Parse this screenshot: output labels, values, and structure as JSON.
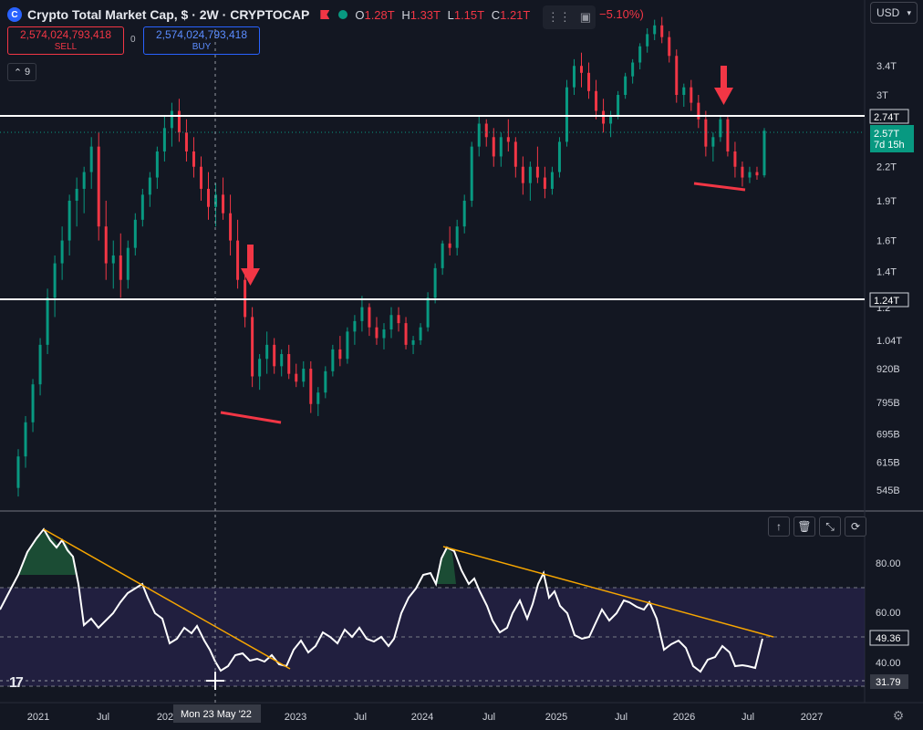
{
  "header": {
    "logo_icon": "crypto-cap-logo-icon",
    "symbol_title": "Crypto Total Market Cap, $ · 2W · CRYPTOCAP",
    "open_label": "O",
    "open": "1.28T",
    "high_label": "H",
    "high": "1.33T",
    "low_label": "L",
    "low": "1.15T",
    "close_label": "C",
    "close": "1.21T",
    "change": "−5.10%)",
    "flag_color": "#f23645",
    "status_color": "#089981"
  },
  "trade": {
    "sell_price": "2,574,024,793,418",
    "sell_label": "SELL",
    "spread": "0",
    "buy_price": "2,574,024,793,418",
    "buy_label": "BUY"
  },
  "indicators_toggle": {
    "count": "9"
  },
  "currency_select": {
    "value": "USD"
  },
  "price_axis": {
    "ticks": [
      "3.4T",
      "3T",
      "2.2T",
      "1.9T",
      "1.6T",
      "1.4T",
      "1.04T",
      "920B",
      "795B",
      "695B",
      "615B",
      "545B"
    ],
    "tick_values": [
      3400000000000.0,
      3000000000000.0,
      2200000000000.0,
      1900000000000.0,
      1600000000000.0,
      1400000000000.0,
      1040000000000.0,
      920000000000.0,
      795000000000.0,
      695000000000.0,
      615000000000.0,
      545000000000.0
    ],
    "label_partial": "1.2",
    "level_upper": "2.74T",
    "level_lower": "1.24T",
    "last_price": "2.57T",
    "countdown": "7d 15h",
    "last_price_color": "#089981"
  },
  "osc_axis": {
    "ticks": [
      "80.00",
      "60.00",
      "40.00"
    ],
    "current": "49.36",
    "crosshair_value": "31.79"
  },
  "time_axis": {
    "labels": [
      "2021",
      "Jul",
      "202",
      "2023",
      "Jul",
      "2024",
      "Jul",
      "2025",
      "Jul",
      "2026",
      "Jul",
      "2027"
    ],
    "crosshair_date": "Mon 23 May '22"
  },
  "colors": {
    "up": "#089981",
    "down": "#f23645",
    "trendline": "#f7a600",
    "annotation": "#f23645",
    "background": "#131722"
  },
  "chart_data": {
    "type": "candlestick",
    "scale": "log",
    "levels": [
      2740000000000.0,
      1240000000000.0
    ],
    "rsi_levels": [
      70,
      30
    ],
    "series": [
      {
        "values": [
          [
            550000000000.0,
            650000000000.0,
            530000000000.0,
            630000000000.0
          ],
          [
            630000000000.0,
            750000000000.0,
            600000000000.0,
            730000000000.0
          ],
          [
            730000000000.0,
            880000000000.0,
            700000000000.0,
            860000000000.0
          ],
          [
            860000000000.0,
            1050000000000.0,
            820000000000.0,
            1020000000000.0
          ],
          [
            1020000000000.0,
            1300000000000.0,
            980000000000.0,
            1250000000000.0
          ],
          [
            1250000000000.0,
            1500000000000.0,
            1150000000000.0,
            1450000000000.0
          ],
          [
            1450000000000.0,
            1700000000000.0,
            1350000000000.0,
            1600000000000.0
          ],
          [
            1600000000000.0,
            1950000000000.0,
            1500000000000.0,
            1900000000000.0
          ],
          [
            1900000000000.0,
            2100000000000.0,
            1700000000000.0,
            2000000000000.0
          ],
          [
            2000000000000.0,
            2200000000000.0,
            1800000000000.0,
            2150000000000.0
          ],
          [
            2150000000000.0,
            2500000000000.0,
            2000000000000.0,
            2400000000000.0
          ],
          [
            2400000000000.0,
            2550000000000.0,
            1600000000000.0,
            1700000000000.0
          ],
          [
            1700000000000.0,
            1900000000000.0,
            1350000000000.0,
            1450000000000.0
          ],
          [
            1450000000000.0,
            1600000000000.0,
            1300000000000.0,
            1500000000000.0
          ],
          [
            1500000000000.0,
            1650000000000.0,
            1250000000000.0,
            1350000000000.0
          ],
          [
            1350000000000.0,
            1600000000000.0,
            1300000000000.0,
            1550000000000.0
          ],
          [
            1550000000000.0,
            1800000000000.0,
            1500000000000.0,
            1750000000000.0
          ],
          [
            1750000000000.0,
            2000000000000.0,
            1700000000000.0,
            1950000000000.0
          ],
          [
            1950000000000.0,
            2150000000000.0,
            1850000000000.0,
            2100000000000.0
          ],
          [
            2100000000000.0,
            2400000000000.0,
            2000000000000.0,
            2350000000000.0
          ],
          [
            2350000000000.0,
            2750000000000.0,
            2250000000000.0,
            2600000000000.0
          ],
          [
            2600000000000.0,
            2900000000000.0,
            2400000000000.0,
            2800000000000.0
          ],
          [
            2800000000000.0,
            2950000000000.0,
            2450000000000.0,
            2550000000000.0
          ],
          [
            2550000000000.0,
            2700000000000.0,
            2250000000000.0,
            2350000000000.0
          ],
          [
            2350000000000.0,
            2500000000000.0,
            2100000000000.0,
            2200000000000.0
          ],
          [
            2200000000000.0,
            2300000000000.0,
            1900000000000.0,
            2000000000000.0
          ],
          [
            2000000000000.0,
            2150000000000.0,
            1750000000000.0,
            1850000000000.0
          ],
          [
            1850000000000.0,
            2050000000000.0,
            1700000000000.0,
            1950000000000.0
          ],
          [
            1950000000000.0,
            2100000000000.0,
            1750000000000.0,
            1800000000000.0
          ],
          [
            1800000000000.0,
            1950000000000.0,
            1500000000000.0,
            1600000000000.0
          ],
          [
            1600000000000.0,
            1750000000000.0,
            1300000000000.0,
            1350000000000.0
          ],
          [
            1350000000000.0,
            1400000000000.0,
            1100000000000.0,
            1150000000000.0
          ],
          [
            1150000000000.0,
            1200000000000.0,
            850000000000.0,
            890000000000.0
          ],
          [
            890000000000.0,
            980000000000.0,
            840000000000.0,
            960000000000.0
          ],
          [
            960000000000.0,
            1080000000000.0,
            900000000000.0,
            1020000000000.0
          ],
          [
            1020000000000.0,
            1050000000000.0,
            900000000000.0,
            930000000000.0
          ],
          [
            930000000000.0,
            1000000000000.0,
            890000000000.0,
            980000000000.0
          ],
          [
            980000000000.0,
            1020000000000.0,
            880000000000.0,
            900000000000.0
          ],
          [
            900000000000.0,
            940000000000.0,
            850000000000.0,
            870000000000.0
          ],
          [
            870000000000.0,
            950000000000.0,
            850000000000.0,
            920000000000.0
          ],
          [
            920000000000.0,
            950000000000.0,
            760000000000.0,
            790000000000.0
          ],
          [
            790000000000.0,
            850000000000.0,
            750000000000.0,
            830000000000.0
          ],
          [
            830000000000.0,
            930000000000.0,
            810000000000.0,
            910000000000.0
          ],
          [
            910000000000.0,
            1020000000000.0,
            890000000000.0,
            1000000000000.0
          ],
          [
            1000000000000.0,
            1060000000000.0,
            930000000000.0,
            960000000000.0
          ],
          [
            960000000000.0,
            1100000000000.0,
            940000000000.0,
            1080000000000.0
          ],
          [
            1080000000000.0,
            1160000000000.0,
            1020000000000.0,
            1130000000000.0
          ],
          [
            1130000000000.0,
            1260000000000.0,
            1080000000000.0,
            1200000000000.0
          ],
          [
            1200000000000.0,
            1220000000000.0,
            1060000000000.0,
            1100000000000.0
          ],
          [
            1100000000000.0,
            1150000000000.0,
            1020000000000.0,
            1050000000000.0
          ],
          [
            1050000000000.0,
            1120000000000.0,
            1000000000000.0,
            1090000000000.0
          ],
          [
            1090000000000.0,
            1200000000000.0,
            1050000000000.0,
            1160000000000.0
          ],
          [
            1160000000000.0,
            1200000000000.0,
            1080000000000.0,
            1120000000000.0
          ],
          [
            1120000000000.0,
            1150000000000.0,
            1000000000000.0,
            1020000000000.0
          ],
          [
            1020000000000.0,
            1060000000000.0,
            980000000000.0,
            1040000000000.0
          ],
          [
            1040000000000.0,
            1120000000000.0,
            1020000000000.0,
            1100000000000.0
          ],
          [
            1100000000000.0,
            1280000000000.0,
            1080000000000.0,
            1250000000000.0
          ],
          [
            1250000000000.0,
            1450000000000.0,
            1220000000000.0,
            1420000000000.0
          ],
          [
            1420000000000.0,
            1600000000000.0,
            1380000000000.0,
            1580000000000.0
          ],
          [
            1580000000000.0,
            1700000000000.0,
            1500000000000.0,
            1550000000000.0
          ],
          [
            1550000000000.0,
            1750000000000.0,
            1500000000000.0,
            1700000000000.0
          ],
          [
            1700000000000.0,
            1950000000000.0,
            1650000000000.0,
            1900000000000.0
          ],
          [
            1900000000000.0,
            2450000000000.0,
            1850000000000.0,
            2400000000000.0
          ],
          [
            2400000000000.0,
            2750000000000.0,
            2300000000000.0,
            2650000000000.0
          ],
          [
            2650000000000.0,
            2700000000000.0,
            2400000000000.0,
            2500000000000.0
          ],
          [
            2500000000000.0,
            2600000000000.0,
            2200000000000.0,
            2300000000000.0
          ],
          [
            2300000000000.0,
            2550000000000.0,
            2200000000000.0,
            2500000000000.0
          ],
          [
            2500000000000.0,
            2700000000000.0,
            2350000000000.0,
            2450000000000.0
          ],
          [
            2450000000000.0,
            2500000000000.0,
            2100000000000.0,
            2200000000000.0
          ],
          [
            2200000000000.0,
            2300000000000.0,
            1950000000000.0,
            2050000000000.0
          ],
          [
            2050000000000.0,
            2250000000000.0,
            1900000000000.0,
            2200000000000.0
          ],
          [
            2200000000000.0,
            2400000000000.0,
            2050000000000.0,
            2100000000000.0
          ],
          [
            2100000000000.0,
            2200000000000.0,
            1920000000000.0,
            2000000000000.0
          ],
          [
            2000000000000.0,
            2200000000000.0,
            1950000000000.0,
            2150000000000.0
          ],
          [
            2150000000000.0,
            2500000000000.0,
            2100000000000.0,
            2450000000000.0
          ],
          [
            2450000000000.0,
            3200000000000.0,
            2400000000000.0,
            3100000000000.0
          ],
          [
            3100000000000.0,
            3500000000000.0,
            3000000000000.0,
            3400000000000.0
          ],
          [
            3400000000000.0,
            3600000000000.0,
            3100000000000.0,
            3300000000000.0
          ],
          [
            3300000000000.0,
            3450000000000.0,
            2950000000000.0,
            3050000000000.0
          ],
          [
            3050000000000.0,
            3200000000000.0,
            2700000000000.0,
            2800000000000.0
          ],
          [
            2800000000000.0,
            2950000000000.0,
            2550000000000.0,
            2650000000000.0
          ],
          [
            2650000000000.0,
            2800000000000.0,
            2500000000000.0,
            2750000000000.0
          ],
          [
            2750000000000.0,
            3050000000000.0,
            2700000000000.0,
            3000000000000.0
          ],
          [
            3000000000000.0,
            3300000000000.0,
            2950000000000.0,
            3250000000000.0
          ],
          [
            3250000000000.0,
            3500000000000.0,
            3150000000000.0,
            3450000000000.0
          ],
          [
            3450000000000.0,
            3750000000000.0,
            3350000000000.0,
            3700000000000.0
          ],
          [
            3700000000000.0,
            4000000000000.0,
            3600000000000.0,
            3900000000000.0
          ],
          [
            3900000000000.0,
            4150000000000.0,
            3800000000000.0,
            4050000000000.0
          ],
          [
            4050000000000.0,
            4200000000000.0,
            3750000000000.0,
            3850000000000.0
          ],
          [
            3850000000000.0,
            3950000000000.0,
            3450000000000.0,
            3550000000000.0
          ],
          [
            3550000000000.0,
            3650000000000.0,
            2900000000000.0,
            3000000000000.0
          ],
          [
            3000000000000.0,
            3150000000000.0,
            2850000000000.0,
            3100000000000.0
          ],
          [
            3100000000000.0,
            3200000000000.0,
            2800000000000.0,
            2900000000000.0
          ],
          [
            2900000000000.0,
            3000000000000.0,
            2600000000000.0,
            2700000000000.0
          ],
          [
            2700000000000.0,
            2800000000000.0,
            2300000000000.0,
            2400000000000.0
          ],
          [
            2400000000000.0,
            2550000000000.0,
            2250000000000.0,
            2500000000000.0
          ],
          [
            2500000000000.0,
            2750000000000.0,
            2450000000000.0,
            2700000000000.0
          ],
          [
            2700000000000.0,
            2750000000000.0,
            2300000000000.0,
            2350000000000.0
          ],
          [
            2350000000000.0,
            2450000000000.0,
            2100000000000.0,
            2200000000000.0
          ],
          [
            2200000000000.0,
            2250000000000.0,
            2020000000000.0,
            2100000000000.0
          ],
          [
            2100000000000.0,
            2200000000000.0,
            2050000000000.0,
            2150000000000.0
          ],
          [
            2150000000000.0,
            2200000000000.0,
            2080000000000.0,
            2120000000000.0
          ],
          [
            2120000000000.0,
            2600000000000.0,
            2100000000000.0,
            2570000000000.0
          ]
        ]
      }
    ]
  }
}
